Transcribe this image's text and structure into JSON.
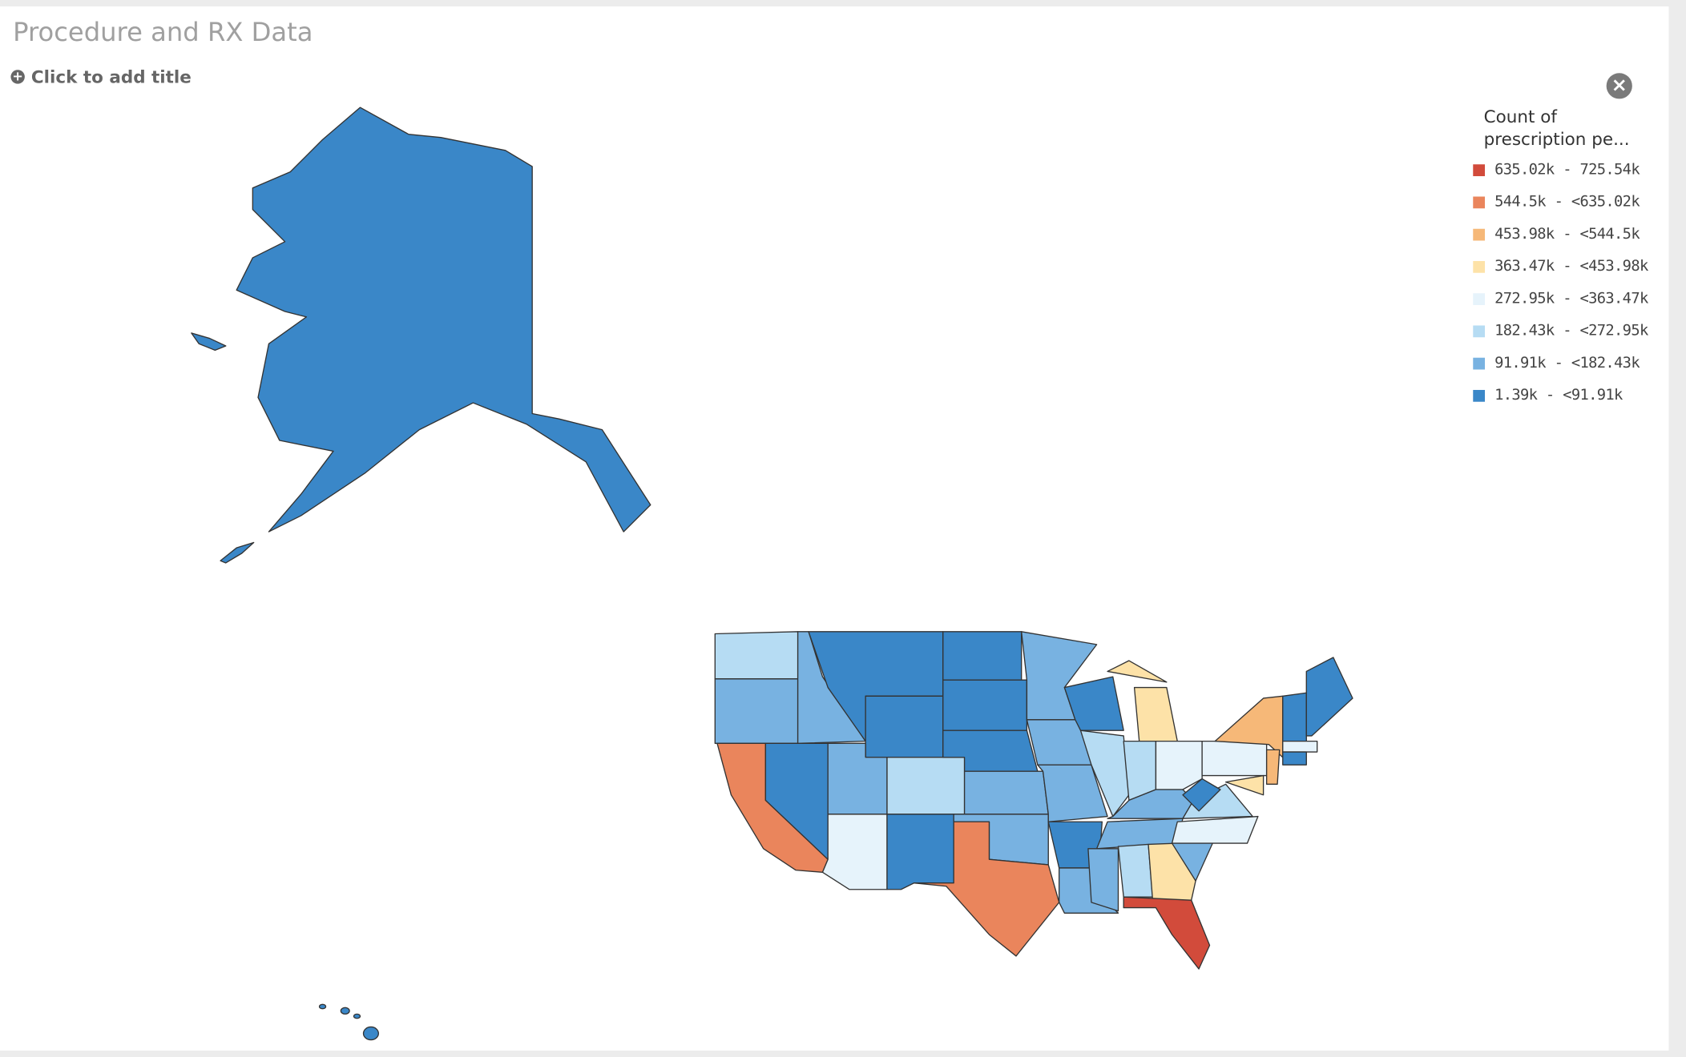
{
  "header": {
    "title": "Procedure and RX Data",
    "add_title": "Click to add title"
  },
  "legend": {
    "title": "Count of prescription pe...",
    "items": [
      {
        "label": "635.02k - 725.54k",
        "color": "#d24b3b"
      },
      {
        "label": "544.5k - <635.02k",
        "color": "#ea855c"
      },
      {
        "label": "453.98k - <544.5k",
        "color": "#f6b878"
      },
      {
        "label": "363.47k - <453.98k",
        "color": "#fde2a8"
      },
      {
        "label": "272.95k - <363.47k",
        "color": "#e6f3fb"
      },
      {
        "label": "182.43k - <272.95k",
        "color": "#b6dcf3"
      },
      {
        "label": "91.91k - <182.43k",
        "color": "#78b2e1"
      },
      {
        "label": "1.39k - <91.91k",
        "color": "#3a87c8"
      }
    ]
  }
}
